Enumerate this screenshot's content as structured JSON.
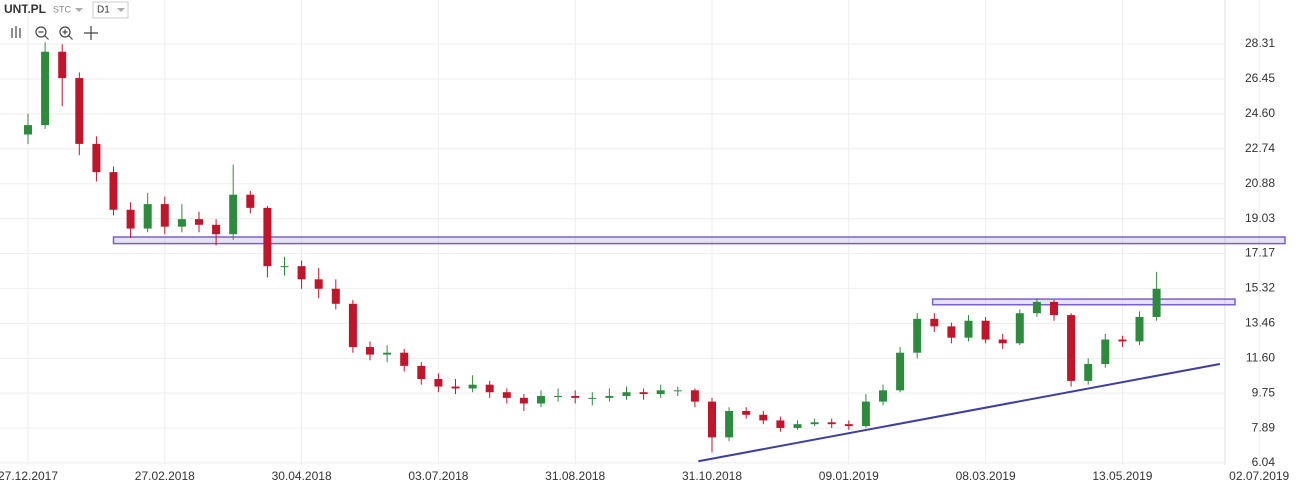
{
  "header": {
    "symbol": "UNT.PL",
    "market": "STC",
    "interval": "D1"
  },
  "chart_data": {
    "type": "candlestick",
    "categories": [
      "27.12.2017",
      null,
      null,
      null,
      null,
      null,
      null,
      null,
      "27.02.2018",
      null,
      null,
      null,
      null,
      null,
      null,
      null,
      "30.04.2018",
      null,
      null,
      null,
      null,
      null,
      null,
      null,
      "03.07.2018",
      null,
      null,
      null,
      null,
      null,
      null,
      null,
      "31.08.2018",
      null,
      null,
      null,
      null,
      null,
      null,
      null,
      "31.10.2018",
      null,
      null,
      null,
      null,
      null,
      null,
      null,
      "09.01.2019",
      null,
      null,
      null,
      null,
      null,
      null,
      null,
      "08.03.2019",
      null,
      null,
      null,
      null,
      null,
      null,
      null,
      "13.05.2019",
      null,
      null,
      null,
      null,
      null,
      null,
      null,
      "02.07.2019"
    ],
    "ohlc": [
      [
        23.5,
        24.6,
        23.0,
        24.0
      ],
      [
        24.0,
        28.4,
        23.8,
        27.9
      ],
      [
        27.9,
        28.3,
        25.0,
        26.5
      ],
      [
        26.5,
        26.8,
        22.4,
        23.0
      ],
      [
        23.0,
        23.4,
        21.0,
        21.5
      ],
      [
        21.5,
        21.8,
        19.2,
        19.5
      ],
      [
        19.5,
        19.9,
        18.0,
        18.5
      ],
      [
        18.5,
        20.4,
        18.3,
        19.8
      ],
      [
        19.8,
        20.2,
        18.2,
        18.6
      ],
      [
        18.6,
        19.8,
        18.3,
        19.0
      ],
      [
        19.0,
        19.4,
        18.3,
        18.7
      ],
      [
        18.7,
        19.0,
        17.6,
        18.2
      ],
      [
        18.2,
        21.9,
        17.9,
        20.3
      ],
      [
        20.3,
        20.5,
        19.3,
        19.6
      ],
      [
        19.6,
        19.7,
        15.9,
        16.5
      ],
      [
        16.5,
        17.0,
        16.0,
        16.5
      ],
      [
        16.5,
        16.8,
        15.3,
        15.8
      ],
      [
        15.8,
        16.4,
        14.8,
        15.3
      ],
      [
        15.3,
        15.8,
        14.2,
        14.5
      ],
      [
        14.5,
        14.7,
        11.9,
        12.2
      ],
      [
        12.2,
        12.5,
        11.5,
        11.8
      ],
      [
        11.8,
        12.3,
        11.4,
        11.9
      ],
      [
        11.9,
        12.1,
        10.9,
        11.2
      ],
      [
        11.2,
        11.4,
        10.2,
        10.5
      ],
      [
        10.5,
        10.8,
        9.8,
        10.1
      ],
      [
        10.1,
        10.5,
        9.7,
        10.0
      ],
      [
        10.0,
        10.7,
        9.8,
        10.2
      ],
      [
        10.2,
        10.4,
        9.5,
        9.8
      ],
      [
        9.8,
        10.0,
        9.2,
        9.5
      ],
      [
        9.5,
        9.7,
        8.8,
        9.2
      ],
      [
        9.2,
        9.9,
        9.0,
        9.6
      ],
      [
        9.6,
        10.0,
        9.3,
        9.6
      ],
      [
        9.6,
        9.9,
        9.2,
        9.5
      ],
      [
        9.5,
        9.8,
        9.1,
        9.5
      ],
      [
        9.5,
        10.0,
        9.3,
        9.6
      ],
      [
        9.6,
        10.1,
        9.4,
        9.8
      ],
      [
        9.8,
        10.0,
        9.4,
        9.7
      ],
      [
        9.7,
        10.2,
        9.5,
        9.9
      ],
      [
        9.9,
        10.1,
        9.6,
        9.9
      ],
      [
        9.9,
        10.0,
        9.0,
        9.3
      ],
      [
        9.3,
        9.5,
        6.6,
        7.4
      ],
      [
        7.4,
        9.0,
        7.2,
        8.8
      ],
      [
        8.8,
        9.0,
        8.4,
        8.6
      ],
      [
        8.6,
        8.8,
        8.1,
        8.3
      ],
      [
        8.3,
        8.5,
        7.7,
        7.9
      ],
      [
        7.9,
        8.3,
        7.8,
        8.1
      ],
      [
        8.1,
        8.4,
        8.0,
        8.2
      ],
      [
        8.2,
        8.4,
        7.9,
        8.1
      ],
      [
        8.1,
        8.3,
        7.8,
        8.0
      ],
      [
        8.0,
        9.7,
        7.9,
        9.3
      ],
      [
        9.3,
        10.2,
        9.1,
        9.9
      ],
      [
        9.9,
        12.2,
        9.8,
        11.9
      ],
      [
        11.9,
        14.0,
        11.6,
        13.7
      ],
      [
        13.7,
        14.0,
        13.0,
        13.3
      ],
      [
        13.3,
        13.5,
        12.4,
        12.7
      ],
      [
        12.7,
        13.9,
        12.5,
        13.6
      ],
      [
        13.6,
        13.8,
        12.4,
        12.6
      ],
      [
        12.6,
        12.9,
        12.1,
        12.4
      ],
      [
        12.4,
        14.2,
        12.3,
        14.0
      ],
      [
        14.0,
        14.8,
        13.8,
        14.6
      ],
      [
        14.6,
        14.7,
        13.6,
        13.9
      ],
      [
        13.9,
        14.0,
        10.1,
        10.4
      ],
      [
        10.4,
        11.6,
        10.2,
        11.3
      ],
      [
        11.3,
        12.9,
        11.1,
        12.6
      ],
      [
        12.6,
        12.8,
        12.2,
        12.5
      ],
      [
        12.5,
        14.1,
        12.3,
        13.8
      ],
      [
        13.8,
        16.2,
        13.6,
        15.3
      ],
      null,
      null,
      null,
      null,
      null,
      null
    ],
    "up_color": "#2e8b3e",
    "down_color": "#c0152a",
    "ylim": [
      5.93,
      30.65
    ],
    "yticks": [
      6.04,
      7.89,
      9.75,
      {
        "value": 11.6,
        "label": "11.60"
      },
      13.46,
      15.32,
      17.17,
      19.03,
      20.88,
      22.74,
      {
        "value": 24.6,
        "label": "24.60"
      },
      26.45,
      28.31
    ],
    "grid": true,
    "zones": [
      {
        "low": 17.7,
        "high": 18.05,
        "start": 5
      },
      {
        "low": 14.45,
        "high": 14.75,
        "start": 52.9
      }
    ],
    "zone_color": "#7b5fd6",
    "trendline": {
      "x": [
        39.2,
        69.7
      ],
      "y": [
        6.13,
        11.3
      ],
      "color": "#3f3fa0"
    }
  }
}
